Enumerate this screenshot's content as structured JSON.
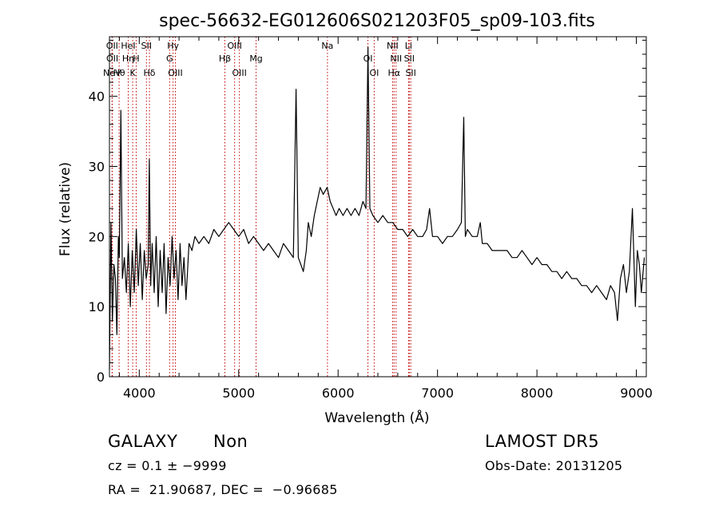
{
  "chart_data": {
    "type": "line",
    "title": "spec-56632-EG012606S021203F05_sp09-103.fits",
    "xlabel": "Wavelength (Å)",
    "ylabel": "Flux (relative)",
    "xlim": [
      3700,
      9100
    ],
    "ylim": [
      0,
      48.5
    ],
    "xticks": [
      4000,
      5000,
      6000,
      7000,
      8000,
      9000
    ],
    "yticks": [
      0,
      10,
      20,
      30,
      40
    ],
    "grid": false,
    "line_color": "#000000",
    "marker_color": "#c00000",
    "spectrum": {
      "x": [
        3700,
        3715,
        3730,
        3745,
        3760,
        3775,
        3790,
        3800,
        3815,
        3830,
        3850,
        3870,
        3890,
        3910,
        3930,
        3950,
        3970,
        3990,
        4010,
        4030,
        4050,
        4070,
        4090,
        4101,
        4115,
        4130,
        4150,
        4170,
        4190,
        4210,
        4230,
        4250,
        4270,
        4290,
        4310,
        4330,
        4350,
        4370,
        4390,
        4410,
        4430,
        4450,
        4470,
        4500,
        4530,
        4560,
        4600,
        4650,
        4700,
        4750,
        4800,
        4850,
        4900,
        4950,
        5000,
        5050,
        5100,
        5150,
        5200,
        5250,
        5300,
        5350,
        5400,
        5450,
        5500,
        5550,
        5577,
        5600,
        5650,
        5680,
        5700,
        5730,
        5760,
        5790,
        5820,
        5850,
        5890,
        5920,
        5950,
        5980,
        6010,
        6050,
        6090,
        6130,
        6170,
        6210,
        6250,
        6280,
        6300,
        6320,
        6350,
        6400,
        6450,
        6500,
        6550,
        6600,
        6650,
        6700,
        6750,
        6800,
        6850,
        6890,
        6920,
        6950,
        7000,
        7050,
        7100,
        7150,
        7200,
        7240,
        7264,
        7280,
        7300,
        7350,
        7400,
        7430,
        7450,
        7500,
        7550,
        7600,
        7650,
        7700,
        7750,
        7800,
        7850,
        7900,
        7950,
        8000,
        8050,
        8100,
        8150,
        8200,
        8250,
        8300,
        8350,
        8400,
        8450,
        8500,
        8550,
        8600,
        8650,
        8700,
        8740,
        8780,
        8810,
        8840,
        8870,
        8900,
        8930,
        8960,
        8990,
        9010,
        9030,
        9050,
        9080
      ],
      "y": [
        1,
        22,
        8,
        16,
        14,
        6,
        20,
        17,
        38,
        14,
        17,
        12,
        19,
        10,
        18,
        12,
        21,
        13,
        19,
        11,
        18,
        14,
        16,
        31,
        13,
        19,
        12,
        20,
        10,
        18,
        12,
        19,
        9,
        17,
        13,
        20,
        14,
        18,
        11,
        19,
        13,
        17,
        11,
        19,
        18,
        20,
        19,
        20,
        19,
        21,
        20,
        21,
        22,
        21,
        20,
        21,
        19,
        20,
        19,
        18,
        19,
        18,
        17,
        19,
        18,
        17,
        41,
        17,
        15,
        18,
        22,
        20,
        23,
        25,
        27,
        26,
        27,
        25,
        24,
        23,
        24,
        23,
        24,
        23,
        24,
        23,
        25,
        24,
        47,
        24,
        23,
        22,
        23,
        22,
        22,
        21,
        21,
        20,
        21,
        20,
        20,
        21,
        24,
        20,
        20,
        19,
        20,
        20,
        21,
        22,
        37,
        20,
        21,
        20,
        20,
        22,
        19,
        19,
        18,
        18,
        18,
        18,
        17,
        17,
        18,
        17,
        16,
        17,
        16,
        16,
        15,
        15,
        14,
        15,
        14,
        14,
        13,
        13,
        12,
        13,
        12,
        11,
        13,
        12,
        8,
        14,
        16,
        12,
        15,
        24,
        10,
        18,
        16,
        12,
        17
      ]
    },
    "lines": [
      {
        "label": "NeV",
        "wl": 3726,
        "row": 3
      },
      {
        "label": "OII",
        "wl": 3727,
        "row": 1
      },
      {
        "label": "OII",
        "wl": 3729,
        "row": 2
      },
      {
        "label": "Hθ",
        "wl": 3797,
        "row": 3
      },
      {
        "label": "HeI",
        "wl": 3889,
        "row": 1
      },
      {
        "label": "Hη",
        "wl": 3889,
        "row": 2
      },
      {
        "label": "K",
        "wl": 3934,
        "row": 3
      },
      {
        "label": "H",
        "wl": 3969,
        "row": 2
      },
      {
        "label": "SII",
        "wl": 4072,
        "row": 1
      },
      {
        "label": "Hδ",
        "wl": 4102,
        "row": 3
      },
      {
        "label": "Hγ",
        "wl": 4340,
        "row": 1
      },
      {
        "label": "G",
        "wl": 4305,
        "row": 2
      },
      {
        "label": "OIII",
        "wl": 4363,
        "row": 3
      },
      {
        "label": "OIII",
        "wl": 4959,
        "row": 1
      },
      {
        "label": "Hβ",
        "wl": 4861,
        "row": 2
      },
      {
        "label": "OIII",
        "wl": 5007,
        "row": 3
      },
      {
        "label": "Mg",
        "wl": 5175,
        "row": 2
      },
      {
        "label": "Na",
        "wl": 5893,
        "row": 1
      },
      {
        "label": "OI",
        "wl": 6300,
        "row": 2
      },
      {
        "label": "OI",
        "wl": 6363,
        "row": 3
      },
      {
        "label": "NII",
        "wl": 6548,
        "row": 1
      },
      {
        "label": "NII",
        "wl": 6583,
        "row": 2
      },
      {
        "label": "Hα",
        "wl": 6563,
        "row": 3
      },
      {
        "label": "Li",
        "wl": 6708,
        "row": 1
      },
      {
        "label": "SII",
        "wl": 6716,
        "row": 2
      },
      {
        "label": "SII",
        "wl": 6731,
        "row": 3
      }
    ],
    "marker_positions": [
      3726,
      3729,
      3797,
      3889,
      3934,
      3969,
      4072,
      4102,
      4305,
      4340,
      4363,
      4861,
      4959,
      5007,
      5175,
      5893,
      6300,
      6363,
      6548,
      6563,
      6583,
      6708,
      6716,
      6731
    ]
  },
  "info": {
    "class": "GALAXY",
    "subclass": "Non",
    "survey": "LAMOST DR5",
    "cz": "cz = 0.1 ± −9999",
    "obs_date": "Obs-Date: 20131205",
    "coords": "RA =  21.90687, DEC =  −0.96685"
  }
}
